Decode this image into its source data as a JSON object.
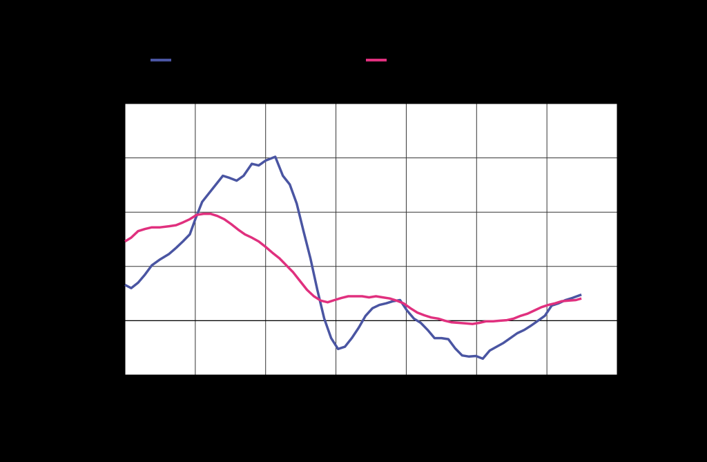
{
  "chart_data": {
    "type": "line",
    "xlim": [
      0,
      714
    ],
    "xticks": [
      0,
      102,
      204,
      306,
      408,
      510,
      612,
      714
    ],
    "ylim": [
      -1,
      4
    ],
    "yticks": [
      -1,
      0,
      1,
      2,
      3,
      4
    ],
    "grid": true,
    "series": [
      {
        "color": "#4a55a2",
        "x": [
          0,
          9,
          19,
          29,
          39,
          51,
          64,
          74,
          84,
          94,
          102,
          112,
          122,
          132,
          142,
          152,
          162,
          172,
          184,
          194,
          204,
          218,
          229,
          239,
          249,
          259,
          269,
          279,
          289,
          299,
          309,
          319,
          329,
          339,
          349,
          359,
          369,
          379,
          389,
          399,
          409,
          419,
          429,
          439,
          449,
          459,
          469,
          479,
          489,
          499,
          509,
          519,
          529,
          539,
          549,
          559,
          569,
          579,
          589,
          599,
          609,
          619,
          629,
          639,
          649,
          662
        ],
        "values": [
          0.66,
          0.6,
          0.7,
          0.85,
          1.02,
          1.13,
          1.23,
          1.34,
          1.46,
          1.59,
          1.87,
          2.19,
          2.35,
          2.51,
          2.67,
          2.63,
          2.58,
          2.67,
          2.89,
          2.86,
          2.95,
          3.02,
          2.67,
          2.51,
          2.16,
          1.65,
          1.15,
          0.57,
          0.04,
          -0.32,
          -0.52,
          -0.48,
          -0.32,
          -0.13,
          0.09,
          0.23,
          0.29,
          0.32,
          0.36,
          0.38,
          0.19,
          0.04,
          -0.04,
          -0.17,
          -0.32,
          -0.32,
          -0.34,
          -0.51,
          -0.64,
          -0.66,
          -0.65,
          -0.7,
          -0.55,
          -0.48,
          -0.41,
          -0.32,
          -0.23,
          -0.17,
          -0.09,
          0,
          0.09,
          0.28,
          0.32,
          0.38,
          0.42,
          0.48
        ]
      },
      {
        "color": "#e0307e",
        "x": [
          0,
          9,
          19,
          29,
          39,
          51,
          64,
          74,
          84,
          94,
          104,
          114,
          124,
          134,
          144,
          154,
          164,
          174,
          184,
          194,
          204,
          214,
          224,
          234,
          244,
          254,
          264,
          274,
          284,
          294,
          304,
          314,
          324,
          334,
          344,
          354,
          364,
          374,
          384,
          394,
          404,
          414,
          424,
          434,
          444,
          454,
          464,
          474,
          484,
          494,
          504,
          514,
          524,
          534,
          544,
          554,
          564,
          574,
          584,
          594,
          604,
          614,
          624,
          634,
          644,
          654,
          662
        ],
        "values": [
          1.46,
          1.53,
          1.65,
          1.69,
          1.72,
          1.72,
          1.74,
          1.76,
          1.81,
          1.87,
          1.95,
          1.97,
          1.97,
          1.93,
          1.87,
          1.78,
          1.68,
          1.59,
          1.53,
          1.46,
          1.36,
          1.25,
          1.15,
          1.02,
          0.89,
          0.73,
          0.57,
          0.45,
          0.37,
          0.34,
          0.38,
          0.42,
          0.45,
          0.45,
          0.45,
          0.43,
          0.45,
          0.43,
          0.41,
          0.37,
          0.32,
          0.23,
          0.15,
          0.1,
          0.06,
          0.04,
          0,
          -0.03,
          -0.04,
          -0.05,
          -0.06,
          -0.04,
          -0.01,
          -0.01,
          0,
          0.01,
          0.04,
          0.09,
          0.13,
          0.19,
          0.25,
          0.29,
          0.32,
          0.36,
          0.37,
          0.38,
          0.41
        ]
      }
    ]
  }
}
